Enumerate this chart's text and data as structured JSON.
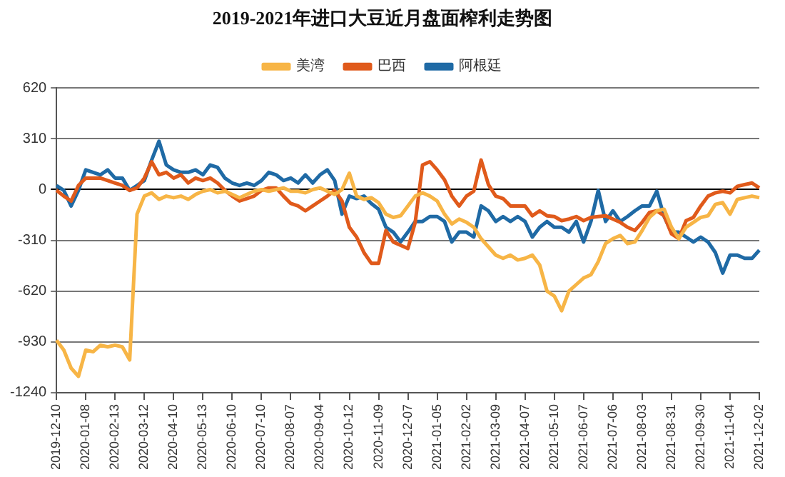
{
  "chart_data": {
    "type": "line",
    "title": "2019-2021年进口大豆近月盘面榨利走势图",
    "categories": [
      "2019-12-10",
      null,
      null,
      null,
      "2020-01-08",
      null,
      null,
      null,
      "2020-02-13",
      null,
      null,
      null,
      "2020-03-12",
      null,
      null,
      null,
      "2020-04-10",
      null,
      null,
      null,
      "2020-05-13",
      null,
      null,
      null,
      "2020-06-10",
      null,
      null,
      null,
      "2020-07-10",
      null,
      null,
      null,
      "2020-08-07",
      null,
      null,
      null,
      "2020-09-04",
      null,
      null,
      null,
      "2020-10-12",
      null,
      null,
      null,
      "2020-11-09",
      null,
      null,
      null,
      "2020-12-07",
      null,
      null,
      null,
      "2021-01-05",
      null,
      null,
      null,
      "2021-02-02",
      null,
      null,
      null,
      "2021-03-09",
      null,
      null,
      null,
      "2021-04-07",
      null,
      null,
      null,
      "2021-05-10",
      null,
      null,
      null,
      "2021-06-07",
      null,
      null,
      null,
      "2021-07-06",
      null,
      null,
      null,
      "2021-08-03",
      null,
      null,
      null,
      "2021-08-31",
      null,
      null,
      null,
      "2021-09-30",
      null,
      null,
      null,
      "2021-11-04",
      null,
      null,
      null,
      "2021-12-02"
    ],
    "series": [
      {
        "name": "美湾",
        "color": "#f7b546",
        "values": [
          -920,
          -980,
          -1090,
          -1140,
          -980,
          -990,
          -950,
          -960,
          -950,
          -960,
          -1040,
          -150,
          -40,
          -20,
          -60,
          -40,
          -50,
          -40,
          -60,
          -30,
          -10,
          0,
          -20,
          -10,
          -30,
          -50,
          -30,
          -10,
          0,
          -10,
          0,
          10,
          -10,
          -10,
          -20,
          0,
          10,
          -10,
          -30,
          0,
          100,
          -40,
          -60,
          -50,
          -80,
          -150,
          -170,
          -160,
          -100,
          -40,
          -20,
          -40,
          -70,
          -150,
          -210,
          -180,
          -200,
          -230,
          -300,
          -350,
          -400,
          -420,
          -400,
          -430,
          -420,
          -400,
          -460,
          -620,
          -650,
          -740,
          -620,
          -580,
          -540,
          -520,
          -440,
          -330,
          -300,
          -280,
          -330,
          -320,
          -250,
          -170,
          -130,
          -120,
          -230,
          -300,
          -230,
          -200,
          -170,
          -160,
          -90,
          -80,
          -150,
          -60,
          -50,
          -40,
          -50
        ]
      },
      {
        "name": "巴西",
        "color": "#e05a1b",
        "values": [
          -5,
          -40,
          -70,
          25,
          70,
          70,
          70,
          55,
          40,
          25,
          -5,
          10,
          70,
          170,
          90,
          105,
          70,
          90,
          40,
          70,
          55,
          70,
          40,
          -5,
          -40,
          -70,
          -55,
          -40,
          -5,
          10,
          10,
          -40,
          -85,
          -100,
          -130,
          -100,
          -70,
          -40,
          -5,
          -70,
          -230,
          -290,
          -385,
          -450,
          -450,
          -250,
          -320,
          -340,
          -360,
          -200,
          150,
          170,
          120,
          60,
          -40,
          -100,
          -40,
          -10,
          180,
          30,
          -40,
          -55,
          -100,
          -100,
          -100,
          -160,
          -130,
          -160,
          -165,
          -190,
          -180,
          -165,
          -190,
          -170,
          -165,
          -160,
          -180,
          -200,
          -230,
          -250,
          -200,
          -140,
          -130,
          -160,
          -270,
          -300,
          -190,
          -170,
          -100,
          -40,
          -20,
          -10,
          -20,
          20,
          30,
          40,
          10
        ]
      },
      {
        "name": "阿根廷",
        "color": "#1f6aa5",
        "values": [
          25,
          -5,
          -100,
          -5,
          120,
          105,
          90,
          120,
          70,
          70,
          -5,
          25,
          55,
          180,
          295,
          150,
          120,
          105,
          105,
          120,
          90,
          150,
          135,
          70,
          40,
          25,
          40,
          25,
          55,
          105,
          90,
          55,
          70,
          40,
          90,
          40,
          90,
          120,
          55,
          -150,
          -40,
          -55,
          -40,
          -85,
          -120,
          -230,
          -260,
          -320,
          -260,
          -195,
          -195,
          -165,
          -165,
          -195,
          -320,
          -260,
          -260,
          -290,
          -100,
          -130,
          -195,
          -165,
          -195,
          -165,
          -195,
          -290,
          -230,
          -195,
          -230,
          -230,
          -260,
          -195,
          -320,
          -195,
          -5,
          -195,
          -130,
          -195,
          -165,
          -130,
          -100,
          -100,
          -10,
          -165,
          -260,
          -260,
          -290,
          -320,
          -290,
          -320,
          -385,
          -510,
          -400,
          -400,
          -420,
          -420,
          -370
        ]
      }
    ],
    "ylim": [
      -1240,
      620
    ],
    "yticks": [
      -1240,
      -930,
      -620,
      -310,
      0,
      310,
      620
    ],
    "grid": "y",
    "legend": "top",
    "marker": "none",
    "line_style": "solid"
  }
}
